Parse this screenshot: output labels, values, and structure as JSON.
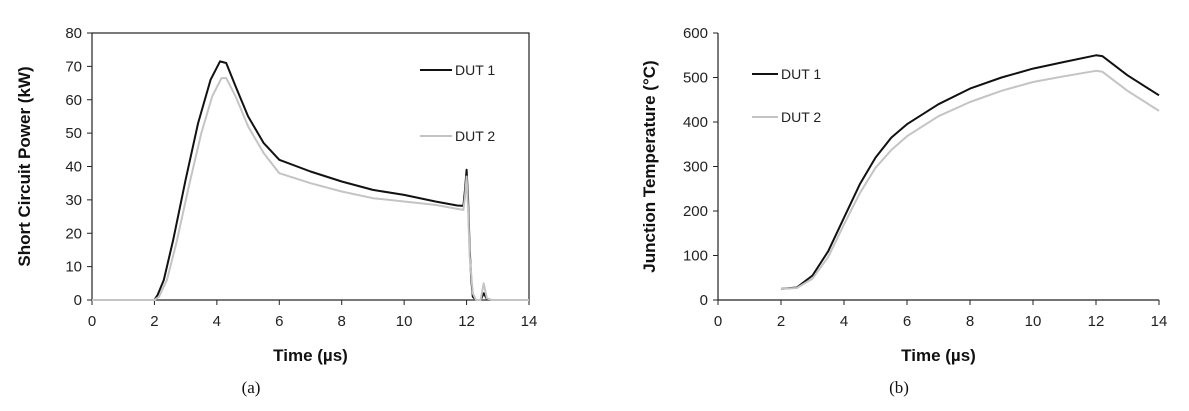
{
  "colors": {
    "dut1": "#111111",
    "dut2": "#c4c4c4",
    "axis": "#222222"
  },
  "chart_data": [
    {
      "type": "line",
      "caption": "(a)",
      "title": "",
      "xlabel": "Time (µs)",
      "ylabel": "Short Circuit Power (kW)",
      "xlim": [
        0,
        14
      ],
      "ylim": [
        0,
        80
      ],
      "xticks": [
        "0",
        "2",
        "4",
        "6",
        "8",
        "10",
        "12",
        "14"
      ],
      "yticks": [
        "0",
        "10",
        "20",
        "30",
        "40",
        "50",
        "60",
        "70",
        "80"
      ],
      "grid": false,
      "legend_position": "top-right",
      "series": [
        {
          "name": "DUT 1",
          "x": [
            0,
            2.0,
            2.1,
            2.3,
            2.6,
            3.0,
            3.4,
            3.8,
            4.1,
            4.3,
            4.6,
            5.0,
            5.5,
            6.0,
            7.0,
            8.0,
            9.0,
            10.0,
            11.0,
            11.7,
            11.9,
            11.95,
            12.0,
            12.05,
            12.1,
            12.15,
            12.2,
            12.3,
            12.45,
            12.55,
            12.65,
            12.8,
            14.0
          ],
          "y": [
            0,
            0,
            1.5,
            6,
            18,
            36,
            53,
            66,
            71.5,
            71,
            64,
            55,
            47,
            42,
            38.5,
            35.5,
            33,
            31.5,
            29.5,
            28.3,
            28.2,
            33,
            39,
            30,
            15,
            6,
            1,
            0,
            0,
            2,
            0.3,
            0,
            0
          ]
        },
        {
          "name": "DUT 2",
          "x": [
            0,
            2.0,
            2.15,
            2.4,
            2.7,
            3.1,
            3.5,
            3.85,
            4.15,
            4.3,
            4.6,
            5.0,
            5.5,
            6.0,
            7.0,
            8.0,
            9.0,
            10.0,
            11.0,
            11.7,
            11.9,
            11.95,
            12.0,
            12.05,
            12.1,
            12.2,
            12.3,
            12.45,
            12.55,
            12.65,
            12.8,
            14.0
          ],
          "y": [
            0,
            0,
            1,
            6,
            17,
            34,
            50,
            61,
            66.5,
            66.5,
            61,
            52,
            44,
            38,
            35,
            32.5,
            30.5,
            29.5,
            28.5,
            27.3,
            27,
            31,
            37,
            27,
            13,
            2,
            0,
            0,
            5,
            0.5,
            0,
            0
          ]
        }
      ]
    },
    {
      "type": "line",
      "caption": "(b)",
      "title": "",
      "xlabel": "Time (µs)",
      "ylabel": "Junction Temperature (°C)",
      "xlim": [
        0,
        14
      ],
      "ylim": [
        0,
        600
      ],
      "xticks": [
        "0",
        "2",
        "4",
        "6",
        "8",
        "10",
        "12",
        "14"
      ],
      "yticks": [
        "0",
        "100",
        "200",
        "300",
        "400",
        "500",
        "600"
      ],
      "grid": false,
      "legend_position": "top-left",
      "series": [
        {
          "name": "DUT 1",
          "x": [
            2.0,
            2.5,
            3.0,
            3.5,
            4.0,
            4.5,
            5.0,
            5.5,
            6.0,
            7.0,
            8.0,
            9.0,
            10.0,
            11.0,
            12.0,
            12.2,
            13.0,
            14.0
          ],
          "y": [
            25,
            28,
            55,
            110,
            185,
            260,
            320,
            365,
            395,
            440,
            475,
            500,
            520,
            535,
            550,
            548,
            505,
            460
          ]
        },
        {
          "name": "DUT 2",
          "x": [
            2.0,
            2.5,
            3.0,
            3.5,
            4.0,
            4.5,
            5.0,
            5.5,
            6.0,
            7.0,
            8.0,
            9.0,
            10.0,
            11.0,
            12.0,
            12.2,
            13.0,
            14.0
          ],
          "y": [
            25,
            27,
            48,
            97,
            170,
            240,
            297,
            337,
            368,
            413,
            445,
            470,
            490,
            503,
            515,
            513,
            470,
            425
          ]
        }
      ]
    }
  ]
}
